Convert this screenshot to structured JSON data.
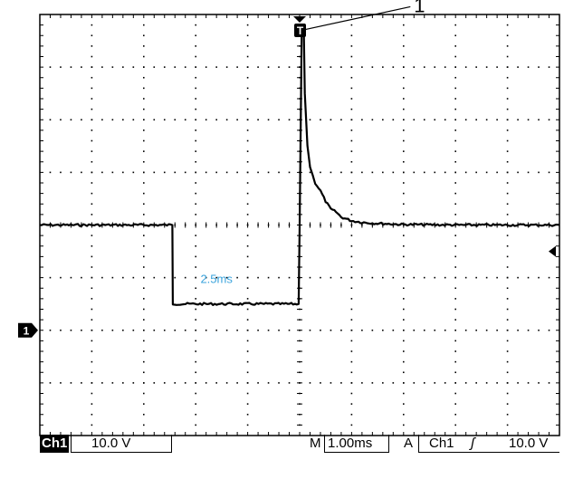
{
  "chart_data": {
    "type": "line",
    "title": "",
    "xlabel": "",
    "ylabel": "",
    "grid": true,
    "x_unit": "ms",
    "y_unit": "V",
    "xlim": [
      -5.0,
      5.0
    ],
    "ylim": [
      -40,
      40
    ],
    "channel_ground_level_divisions": -2.0,
    "series": [
      {
        "x": [
          -5.0,
          -2.45,
          -2.44,
          -0.02,
          0.0,
          0.04,
          0.08,
          0.1,
          0.15,
          0.2,
          0.25,
          0.3,
          0.4,
          0.5,
          0.6,
          0.7,
          0.8,
          1.0,
          1.2,
          1.5,
          2.0,
          3.0,
          4.0,
          5.0
        ],
        "y": [
          0.0,
          0.0,
          -15.0,
          -15.0,
          0.0,
          37.0,
          37.0,
          25.0,
          15.0,
          11.0,
          9.5,
          8.0,
          6.5,
          4.5,
          3.0,
          2.5,
          1.5,
          0.8,
          0.5,
          0.3,
          0.1,
          0.0,
          0.0,
          0.0
        ]
      }
    ],
    "annotations": [
      {
        "text": "1",
        "x": 0.04,
        "y": 37.0
      },
      {
        "text": "2.5ms",
        "x": -1.6,
        "y": -11.0
      }
    ],
    "trigger_marker": "T",
    "channel_marker": "1"
  },
  "status_bar": {
    "channel": "Ch1",
    "channel_scale": "10.0 V",
    "timebase_prefix": "M",
    "timebase": "1.00ms",
    "trigger_mode": "A",
    "trigger_source": "Ch1",
    "trigger_slope": "ʃ",
    "trigger_level": "10.0 V"
  },
  "colors": {
    "trace": "#000000",
    "annotation_text": "#3aa3dc",
    "grid": "#000000",
    "background": "#ffffff"
  }
}
